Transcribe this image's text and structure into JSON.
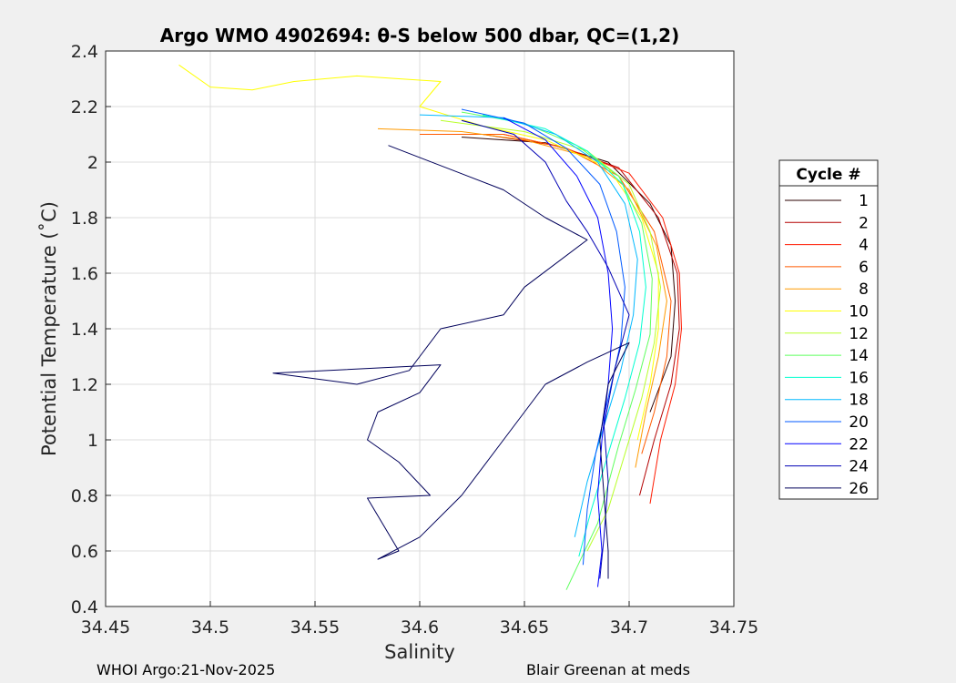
{
  "chart_data": {
    "type": "line",
    "title": "Argo WMO 4902694: θ-S below 500 dbar,  QC=(1,2)",
    "xlabel": "Salinity",
    "ylabel": "Potential Temperature (˚C)",
    "xlim": [
      34.45,
      34.75
    ],
    "ylim": [
      0.4,
      2.4
    ],
    "xticks": [
      "34.45",
      "34.5",
      "34.55",
      "34.6",
      "34.65",
      "34.7",
      "34.75"
    ],
    "yticks": [
      "0.4",
      "0.6",
      "0.8",
      "1",
      "1.2",
      "1.4",
      "1.6",
      "1.8",
      "2",
      "2.2",
      "2.4"
    ],
    "grid": true,
    "legend": {
      "title": "Cycle #",
      "placement": "right"
    },
    "series": [
      {
        "name": "1",
        "color": "#2b0000",
        "points": [
          [
            34.62,
            2.09
          ],
          [
            34.66,
            2.07
          ],
          [
            34.69,
            2.0
          ],
          [
            34.71,
            1.85
          ],
          [
            34.72,
            1.7
          ],
          [
            34.722,
            1.5
          ],
          [
            34.72,
            1.3
          ],
          [
            34.71,
            1.1
          ]
        ]
      },
      {
        "name": "2",
        "color": "#b40000",
        "points": [
          [
            34.63,
            2.1
          ],
          [
            34.665,
            2.06
          ],
          [
            34.695,
            1.98
          ],
          [
            34.714,
            1.8
          ],
          [
            34.723,
            1.6
          ],
          [
            34.724,
            1.4
          ],
          [
            34.72,
            1.2
          ],
          [
            34.712,
            1.0
          ],
          [
            34.705,
            0.8
          ]
        ]
      },
      {
        "name": "4",
        "color": "#ff1a00",
        "points": [
          [
            34.64,
            2.1
          ],
          [
            34.67,
            2.05
          ],
          [
            34.7,
            1.96
          ],
          [
            34.716,
            1.8
          ],
          [
            34.724,
            1.6
          ],
          [
            34.725,
            1.4
          ],
          [
            34.722,
            1.2
          ],
          [
            34.715,
            1.0
          ],
          [
            34.71,
            0.77
          ]
        ]
      },
      {
        "name": "6",
        "color": "#ff5a00",
        "points": [
          [
            34.6,
            2.1
          ],
          [
            34.64,
            2.1
          ],
          [
            34.67,
            2.05
          ],
          [
            34.695,
            1.95
          ],
          [
            34.712,
            1.75
          ],
          [
            34.72,
            1.5
          ],
          [
            34.718,
            1.3
          ],
          [
            34.712,
            1.1
          ],
          [
            34.706,
            0.95
          ]
        ]
      },
      {
        "name": "8",
        "color": "#ff9a00",
        "points": [
          [
            34.58,
            2.12
          ],
          [
            34.62,
            2.11
          ],
          [
            34.65,
            2.08
          ],
          [
            34.68,
            2.02
          ],
          [
            34.7,
            1.9
          ],
          [
            34.713,
            1.7
          ],
          [
            34.718,
            1.5
          ],
          [
            34.714,
            1.3
          ],
          [
            34.708,
            1.1
          ],
          [
            34.703,
            0.9
          ]
        ]
      },
      {
        "name": "10",
        "color": "#ffff00",
        "points": [
          [
            34.485,
            2.35
          ],
          [
            34.5,
            2.27
          ],
          [
            34.52,
            2.26
          ],
          [
            34.54,
            2.29
          ],
          [
            34.57,
            2.31
          ],
          [
            34.59,
            2.3
          ],
          [
            34.61,
            2.29
          ],
          [
            34.6,
            2.2
          ],
          [
            34.63,
            2.13
          ],
          [
            34.66,
            2.08
          ],
          [
            34.69,
            1.98
          ],
          [
            34.706,
            1.8
          ],
          [
            34.714,
            1.6
          ],
          [
            34.714,
            1.4
          ],
          [
            34.71,
            1.2
          ],
          [
            34.704,
            1.0
          ]
        ]
      },
      {
        "name": "12",
        "color": "#b8ff2a",
        "points": [
          [
            34.61,
            2.15
          ],
          [
            34.65,
            2.11
          ],
          [
            34.68,
            2.04
          ],
          [
            34.7,
            1.92
          ],
          [
            34.71,
            1.75
          ],
          [
            34.715,
            1.55
          ],
          [
            34.712,
            1.35
          ],
          [
            34.706,
            1.15
          ],
          [
            34.698,
            0.95
          ],
          [
            34.69,
            0.75
          ],
          [
            34.68,
            0.6
          ]
        ]
      },
      {
        "name": "14",
        "color": "#5eff5e",
        "points": [
          [
            34.62,
            2.18
          ],
          [
            34.65,
            2.14
          ],
          [
            34.675,
            2.06
          ],
          [
            34.695,
            1.95
          ],
          [
            34.706,
            1.78
          ],
          [
            34.711,
            1.58
          ],
          [
            34.71,
            1.38
          ],
          [
            34.703,
            1.18
          ],
          [
            34.695,
            0.98
          ],
          [
            34.685,
            0.7
          ],
          [
            34.67,
            0.46
          ]
        ]
      },
      {
        "name": "16",
        "color": "#00ffd0",
        "points": [
          [
            34.63,
            2.17
          ],
          [
            34.66,
            2.12
          ],
          [
            34.68,
            2.04
          ],
          [
            34.697,
            1.92
          ],
          [
            34.705,
            1.75
          ],
          [
            34.708,
            1.55
          ],
          [
            34.705,
            1.35
          ],
          [
            34.698,
            1.15
          ],
          [
            34.69,
            0.95
          ],
          [
            34.682,
            0.75
          ],
          [
            34.676,
            0.58
          ]
        ]
      },
      {
        "name": "18",
        "color": "#00b8ff",
        "points": [
          [
            34.6,
            2.17
          ],
          [
            34.64,
            2.16
          ],
          [
            34.665,
            2.1
          ],
          [
            34.685,
            2.0
          ],
          [
            34.698,
            1.85
          ],
          [
            34.704,
            1.65
          ],
          [
            34.702,
            1.45
          ],
          [
            34.696,
            1.25
          ],
          [
            34.688,
            1.05
          ],
          [
            34.68,
            0.85
          ],
          [
            34.674,
            0.65
          ]
        ]
      },
      {
        "name": "20",
        "color": "#005aff",
        "points": [
          [
            34.62,
            2.19
          ],
          [
            34.65,
            2.14
          ],
          [
            34.67,
            2.05
          ],
          [
            34.686,
            1.92
          ],
          [
            34.694,
            1.75
          ],
          [
            34.698,
            1.55
          ],
          [
            34.696,
            1.35
          ],
          [
            34.69,
            1.15
          ],
          [
            34.684,
            0.95
          ],
          [
            34.68,
            0.75
          ],
          [
            34.678,
            0.55
          ]
        ]
      },
      {
        "name": "22",
        "color": "#0000ff",
        "points": [
          [
            34.64,
            2.16
          ],
          [
            34.66,
            2.08
          ],
          [
            34.675,
            1.95
          ],
          [
            34.685,
            1.8
          ],
          [
            34.69,
            1.6
          ],
          [
            34.692,
            1.4
          ],
          [
            34.69,
            1.2
          ],
          [
            34.687,
            1.0
          ],
          [
            34.685,
            0.8
          ],
          [
            34.687,
            0.6
          ],
          [
            34.685,
            0.47
          ]
        ]
      },
      {
        "name": "24",
        "color": "#0000b4",
        "points": [
          [
            34.62,
            2.15
          ],
          [
            34.645,
            2.1
          ],
          [
            34.66,
            2.0
          ],
          [
            34.67,
            1.86
          ],
          [
            34.68,
            1.75
          ],
          [
            34.69,
            1.62
          ],
          [
            34.7,
            1.45
          ],
          [
            34.693,
            1.25
          ],
          [
            34.688,
            1.05
          ],
          [
            34.69,
            0.85
          ],
          [
            34.688,
            0.65
          ],
          [
            34.686,
            0.5
          ]
        ]
      },
      {
        "name": "26",
        "color": "#00005a",
        "points": [
          [
            34.585,
            2.06
          ],
          [
            34.64,
            1.9
          ],
          [
            34.66,
            1.8
          ],
          [
            34.68,
            1.72
          ],
          [
            34.65,
            1.55
          ],
          [
            34.64,
            1.45
          ],
          [
            34.61,
            1.4
          ],
          [
            34.6,
            1.3
          ],
          [
            34.595,
            1.25
          ],
          [
            34.57,
            1.2
          ],
          [
            34.55,
            1.22
          ],
          [
            34.53,
            1.24
          ],
          [
            34.61,
            1.27
          ],
          [
            34.6,
            1.17
          ],
          [
            34.58,
            1.1
          ],
          [
            34.575,
            1.0
          ],
          [
            34.59,
            0.92
          ],
          [
            34.605,
            0.8
          ],
          [
            34.575,
            0.79
          ],
          [
            34.59,
            0.6
          ],
          [
            34.58,
            0.57
          ],
          [
            34.6,
            0.65
          ],
          [
            34.62,
            0.8
          ],
          [
            34.64,
            1.0
          ],
          [
            34.66,
            1.2
          ],
          [
            34.68,
            1.28
          ],
          [
            34.7,
            1.35
          ],
          [
            34.69,
            1.2
          ],
          [
            34.686,
            1.0
          ],
          [
            34.688,
            0.8
          ],
          [
            34.69,
            0.6
          ],
          [
            34.69,
            0.5
          ]
        ]
      }
    ]
  },
  "footer": {
    "left": "WHOI Argo:21-Nov-2025",
    "right": "Blair Greenan at meds"
  }
}
